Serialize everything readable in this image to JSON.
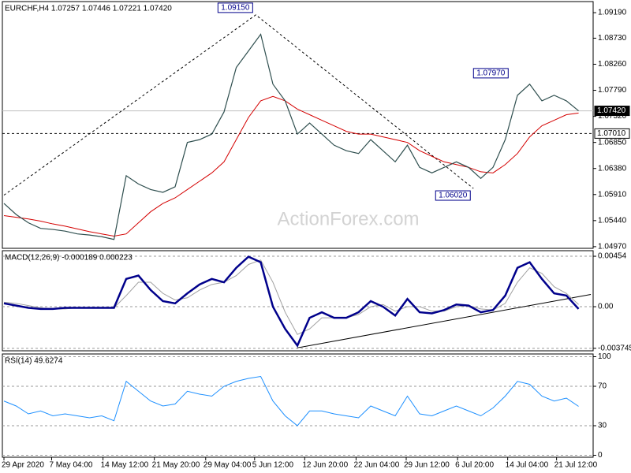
{
  "chart_data": [
    {
      "type": "line",
      "title": "EURCHF,H4  1.07257 1.07446 1.07221 1.07420",
      "watermark": "ActionForex.com",
      "x": [
        0,
        1,
        2,
        3,
        4,
        5,
        6,
        7,
        8,
        9,
        10,
        11,
        12,
        13,
        14,
        15,
        16,
        17,
        18,
        19,
        20,
        21,
        22,
        23,
        24,
        25,
        26,
        27,
        28,
        29,
        30,
        31,
        32,
        33,
        34,
        35,
        36,
        37,
        38,
        39,
        40,
        41,
        42,
        43,
        44,
        45,
        46,
        47
      ],
      "series": [
        {
          "color": "#2f4f4f",
          "width": 1.2,
          "values": [
            1.0575,
            1.0555,
            1.054,
            1.053,
            1.0528,
            1.0525,
            1.052,
            1.0518,
            1.0515,
            1.051,
            1.0625,
            1.061,
            1.06,
            1.0595,
            1.0605,
            1.0685,
            1.069,
            1.07,
            1.074,
            1.082,
            1.085,
            1.088,
            1.079,
            1.076,
            1.07,
            1.072,
            1.07,
            1.068,
            1.067,
            1.0665,
            1.069,
            1.067,
            1.065,
            1.068,
            1.064,
            1.063,
            1.064,
            1.065,
            1.064,
            1.062,
            1.064,
            1.069,
            1.077,
            1.079,
            1.076,
            1.077,
            1.076,
            1.0742
          ]
        },
        {
          "color": "#d40000",
          "width": 1,
          "values": [
            1.0553,
            1.055,
            1.0547,
            1.0543,
            1.0538,
            1.0534,
            1.0529,
            1.0524,
            1.052,
            1.0516,
            1.052,
            1.054,
            1.056,
            1.0575,
            1.0585,
            1.06,
            1.0615,
            1.063,
            1.065,
            1.069,
            1.073,
            1.076,
            1.0768,
            1.076,
            1.0745,
            1.0735,
            1.0725,
            1.0715,
            1.0705,
            1.07,
            1.07,
            1.0695,
            1.069,
            1.0685,
            1.067,
            1.066,
            1.065,
            1.0645,
            1.064,
            1.0632,
            1.063,
            1.0645,
            1.0665,
            1.0695,
            1.0715,
            1.0725,
            1.0735,
            1.0738
          ]
        }
      ],
      "xlim": [
        -0.13,
        48.19
      ],
      "ylim": [
        1.0494,
        1.0939
      ],
      "yticks": [
        {
          "value": 1.0919,
          "label": "1.09190"
        },
        {
          "value": 1.0873,
          "label": "1.08730"
        },
        {
          "value": 1.0826,
          "label": "1.08260"
        },
        {
          "value": 1.0779,
          "label": "1.07790"
        },
        {
          "value": 1.0732,
          "label": "1.07320"
        },
        {
          "value": 1.0685,
          "label": "1.06850"
        },
        {
          "value": 1.0638,
          "label": "1.06380"
        },
        {
          "value": 1.0591,
          "label": "1.05910"
        },
        {
          "value": 1.0544,
          "label": "1.05440"
        },
        {
          "value": 1.0497,
          "label": "1.04970"
        }
      ],
      "price_lines": [
        {
          "value": 1.0742,
          "label": "1.07420",
          "style": "solid"
        },
        {
          "value": 1.0701,
          "label": "1.07010",
          "style": "dashed"
        }
      ],
      "annotations": [
        {
          "x": 20.6,
          "value": 1.0915,
          "label": "1.09150"
        },
        {
          "x": 41.5,
          "value": 1.0797,
          "label": "1.07970"
        },
        {
          "x": 38.4,
          "value": 1.0602,
          "label": "1.06020"
        }
      ],
      "zigzag": {
        "x": [
          0,
          20.6,
          38.4
        ],
        "values": [
          1.059,
          1.0915,
          1.0602
        ]
      }
    },
    {
      "type": "line",
      "title": "MACD(12,26,9) -0.000189 0.000223",
      "series": [
        {
          "color": "#00008b",
          "width": 2.5,
          "values": [
            0.0003,
            0.0001,
            -0.0001,
            -0.0002,
            -0.0002,
            -0.0001,
            -0.0001,
            -0.0001,
            -0.0001,
            -0.0001,
            0.0025,
            0.0028,
            0.0015,
            0.0005,
            0.0003,
            0.0012,
            0.002,
            0.0025,
            0.0022,
            0.0035,
            0.0045,
            0.004,
            0.0,
            -0.002,
            -0.0035,
            -0.001,
            -0.0005,
            -0.001,
            -0.001,
            -0.0005,
            0.0005,
            0.0,
            -0.0008,
            0.0007,
            -0.0005,
            -0.0006,
            -0.0003,
            0.0002,
            0.0001,
            -0.0005,
            -0.0003,
            0.001,
            0.0035,
            0.004,
            0.0025,
            0.0012,
            0.001,
            -0.0002
          ]
        },
        {
          "color": "#a0a0a0",
          "width": 1,
          "values": [
            0.0004,
            0.0003,
            0.0001,
            -0.0001,
            -0.0002,
            -0.0002,
            -0.0001,
            -0.0001,
            -0.0001,
            -0.0001,
            0.001,
            0.0022,
            0.0022,
            0.0012,
            0.0006,
            0.0008,
            0.0015,
            0.002,
            0.0022,
            0.0028,
            0.0038,
            0.0042,
            0.0022,
            -0.0005,
            -0.0025,
            -0.002,
            -0.001,
            -0.001,
            -0.001,
            -0.0007,
            0.0,
            0.0002,
            -0.0004,
            0.0,
            0.0,
            -0.0004,
            -0.0004,
            0.0,
            0.0001,
            -0.0002,
            -0.0003,
            0.0003,
            0.0022,
            0.0035,
            0.003,
            0.0018,
            0.0012,
            0.0002
          ]
        }
      ],
      "ylim": [
        -0.00397,
        0.00504
      ],
      "yticks": [
        0.00454,
        {
          "value": 0,
          "label": "0.00"
        },
        -0.003745
      ],
      "trendline": {
        "x": [
          24,
          48
        ],
        "values": [
          -0.0037,
          0.0011
        ]
      }
    },
    {
      "type": "line",
      "title": "RSI(14) 49.6274",
      "series": [
        {
          "color": "#1e90ff",
          "width": 1,
          "values": [
            55,
            50,
            42,
            45,
            40,
            42,
            40,
            38,
            40,
            35,
            75,
            65,
            55,
            50,
            52,
            65,
            62,
            60,
            70,
            75,
            78,
            80,
            55,
            40,
            30,
            45,
            45,
            42,
            40,
            38,
            50,
            45,
            40,
            60,
            42,
            40,
            45,
            50,
            45,
            40,
            48,
            60,
            75,
            72,
            60,
            55,
            58,
            49.6
          ]
        }
      ],
      "ylim": [
        -2,
        102.8
      ],
      "yticks": [
        100,
        70,
        30,
        0
      ],
      "xticks": [
        {
          "value": 0,
          "label": "29 Apr 2020"
        },
        {
          "value": 3.9,
          "label": "7 May 04:00"
        },
        {
          "value": 8.1,
          "label": "14 May 12:00"
        },
        {
          "value": 12.3,
          "label": "21 May 20:00"
        },
        {
          "value": 16.5,
          "label": "29 May 04:00"
        },
        {
          "value": 20.5,
          "label": "5 Jun 12:00"
        },
        {
          "value": 24.6,
          "label": "12 Jun 20:00"
        },
        {
          "value": 28.8,
          "label": "22 Jun 04:00"
        },
        {
          "value": 32.9,
          "label": "29 Jun 12:00"
        },
        {
          "value": 37.1,
          "label": "6 Jul 20:00"
        },
        {
          "value": 41.2,
          "label": "14 Jul 04:00"
        },
        {
          "value": 45.2,
          "label": "21 Jul 12:00"
        }
      ]
    }
  ]
}
